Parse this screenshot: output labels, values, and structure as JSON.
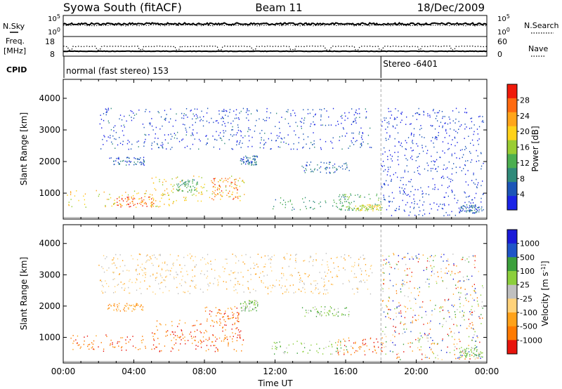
{
  "header": {
    "station": "Syowa South (fitACF)",
    "beam": "Beam 11",
    "date": "18/Dec/2009"
  },
  "panels": {
    "nsky_label": "N.Sky",
    "nsearch_label": "N.Search",
    "freq_label": "Freq.",
    "freq_unit": "[MHz]",
    "nave_label": "Nave",
    "cpid_label": "CPID",
    "cpid_segments": [
      {
        "label": "normal (fast stereo) 153",
        "start_hour": 0
      },
      {
        "label": "Stereo -6401",
        "start_hour": 18
      }
    ],
    "nsky_ticks": [
      "10^5",
      "10^0"
    ],
    "nsearch_ticks": [
      "10^5",
      "10^0"
    ],
    "freq_ticks": [
      "18",
      "8"
    ],
    "nave_ticks": [
      "60",
      "0"
    ]
  },
  "chart_data": [
    {
      "type": "heatmap",
      "title": "",
      "xlabel": "Time UT",
      "ylabel": "Slant Range [km]",
      "colorbar_label": "Power [dB]",
      "x_ticks": [
        "00:00",
        "04:00",
        "08:00",
        "12:00",
        "16:00",
        "20:00",
        "00:00"
      ],
      "xlim": [
        0,
        24
      ],
      "ylim": [
        180,
        4600
      ],
      "y_ticks": [
        1000,
        2000,
        3000,
        4000
      ],
      "colorbar_ticks": [
        4,
        8,
        12,
        16,
        20,
        24,
        28
      ],
      "colorbar_range": [
        0,
        32
      ],
      "colormap": [
        "#1a23e6",
        "#1b55b8",
        "#2f8a7a",
        "#4caf50",
        "#9acd32",
        "#ffd21a",
        "#ffa51a",
        "#ff6a10",
        "#f01a0a"
      ],
      "regions": [
        {
          "t0": 0.2,
          "t1": 6.3,
          "r0": 560,
          "r1": 1100,
          "value": 20
        },
        {
          "t0": 3.0,
          "t1": 5.2,
          "r0": 580,
          "r1": 900,
          "value": 27
        },
        {
          "t0": 5.0,
          "t1": 10.3,
          "r0": 760,
          "r1": 1560,
          "value": 19
        },
        {
          "t0": 6.4,
          "t1": 7.6,
          "r0": 1050,
          "r1": 1450,
          "value": 11
        },
        {
          "t0": 8.4,
          "t1": 9.9,
          "r0": 800,
          "r1": 1500,
          "value": 26
        },
        {
          "t0": 2.6,
          "t1": 4.6,
          "r0": 1900,
          "r1": 2150,
          "value": 5
        },
        {
          "t0": 10.0,
          "t1": 11.0,
          "r0": 1900,
          "r1": 2200,
          "value": 6
        },
        {
          "t0": 11.8,
          "t1": 16.3,
          "r0": 480,
          "r1": 900,
          "value": 10
        },
        {
          "t0": 13.5,
          "t1": 16.2,
          "r0": 1650,
          "r1": 2000,
          "value": 6
        },
        {
          "t0": 15.5,
          "t1": 18.1,
          "r0": 450,
          "r1": 1000,
          "value": 13
        },
        {
          "t0": 16.5,
          "t1": 18.0,
          "r0": 450,
          "r1": 650,
          "value": 18
        },
        {
          "t0": 18.0,
          "t1": 23.8,
          "r0": 300,
          "r1": 3700,
          "value": 3
        },
        {
          "t0": 2.0,
          "t1": 17.5,
          "r0": 2400,
          "r1": 3700,
          "value": 4
        },
        {
          "t0": 22.4,
          "t1": 23.7,
          "r0": 380,
          "r1": 650,
          "value": 6
        }
      ]
    },
    {
      "type": "heatmap",
      "title": "",
      "xlabel": "Time UT",
      "ylabel": "Slant Range [km]",
      "colorbar_label": "Velocity [m s^-1]",
      "x_ticks": [
        "00:00",
        "04:00",
        "08:00",
        "12:00",
        "16:00",
        "20:00",
        "00:00"
      ],
      "xlim": [
        0,
        24
      ],
      "ylim": [
        180,
        4600
      ],
      "y_ticks": [
        1000,
        2000,
        3000,
        4000
      ],
      "colorbar_ticks": [
        "1000",
        "500",
        "100",
        "25",
        "-25",
        "-100",
        "-500",
        "-1000"
      ],
      "colormap": [
        "#e8140c",
        "#ff7a00",
        "#ffa21a",
        "#ffd27a",
        "#c0c0c0",
        "#8ccf3c",
        "#3ca03c",
        "#1f55c8",
        "#1a1ad8"
      ],
      "regions": [
        {
          "t0": 0.2,
          "t1": 10.3,
          "r0": 560,
          "r1": 1100,
          "value": 1
        },
        {
          "t0": 5.0,
          "t1": 10.3,
          "r0": 760,
          "r1": 1560,
          "value": 1
        },
        {
          "t0": 8.0,
          "t1": 10.0,
          "r0": 1400,
          "r1": 2000,
          "value": 1
        },
        {
          "t0": 2.5,
          "t1": 4.5,
          "r0": 1850,
          "r1": 2100,
          "value": 2
        },
        {
          "t0": 10.0,
          "t1": 11.0,
          "r0": 1850,
          "r1": 2200,
          "value": 5
        },
        {
          "t0": 11.8,
          "t1": 16.3,
          "r0": 480,
          "r1": 900,
          "value": 5
        },
        {
          "t0": 13.5,
          "t1": 16.2,
          "r0": 1650,
          "r1": 2000,
          "value": 5
        },
        {
          "t0": 15.5,
          "t1": 18.1,
          "r0": 450,
          "r1": 1000,
          "value": 1
        },
        {
          "t0": 18.0,
          "t1": 23.8,
          "r0": 300,
          "r1": 3700,
          "value": 4
        },
        {
          "t0": 2.0,
          "t1": 17.5,
          "r0": 2400,
          "r1": 3700,
          "value": 3
        },
        {
          "t0": 22.4,
          "t1": 23.8,
          "r0": 380,
          "r1": 700,
          "value": 5
        }
      ]
    }
  ]
}
